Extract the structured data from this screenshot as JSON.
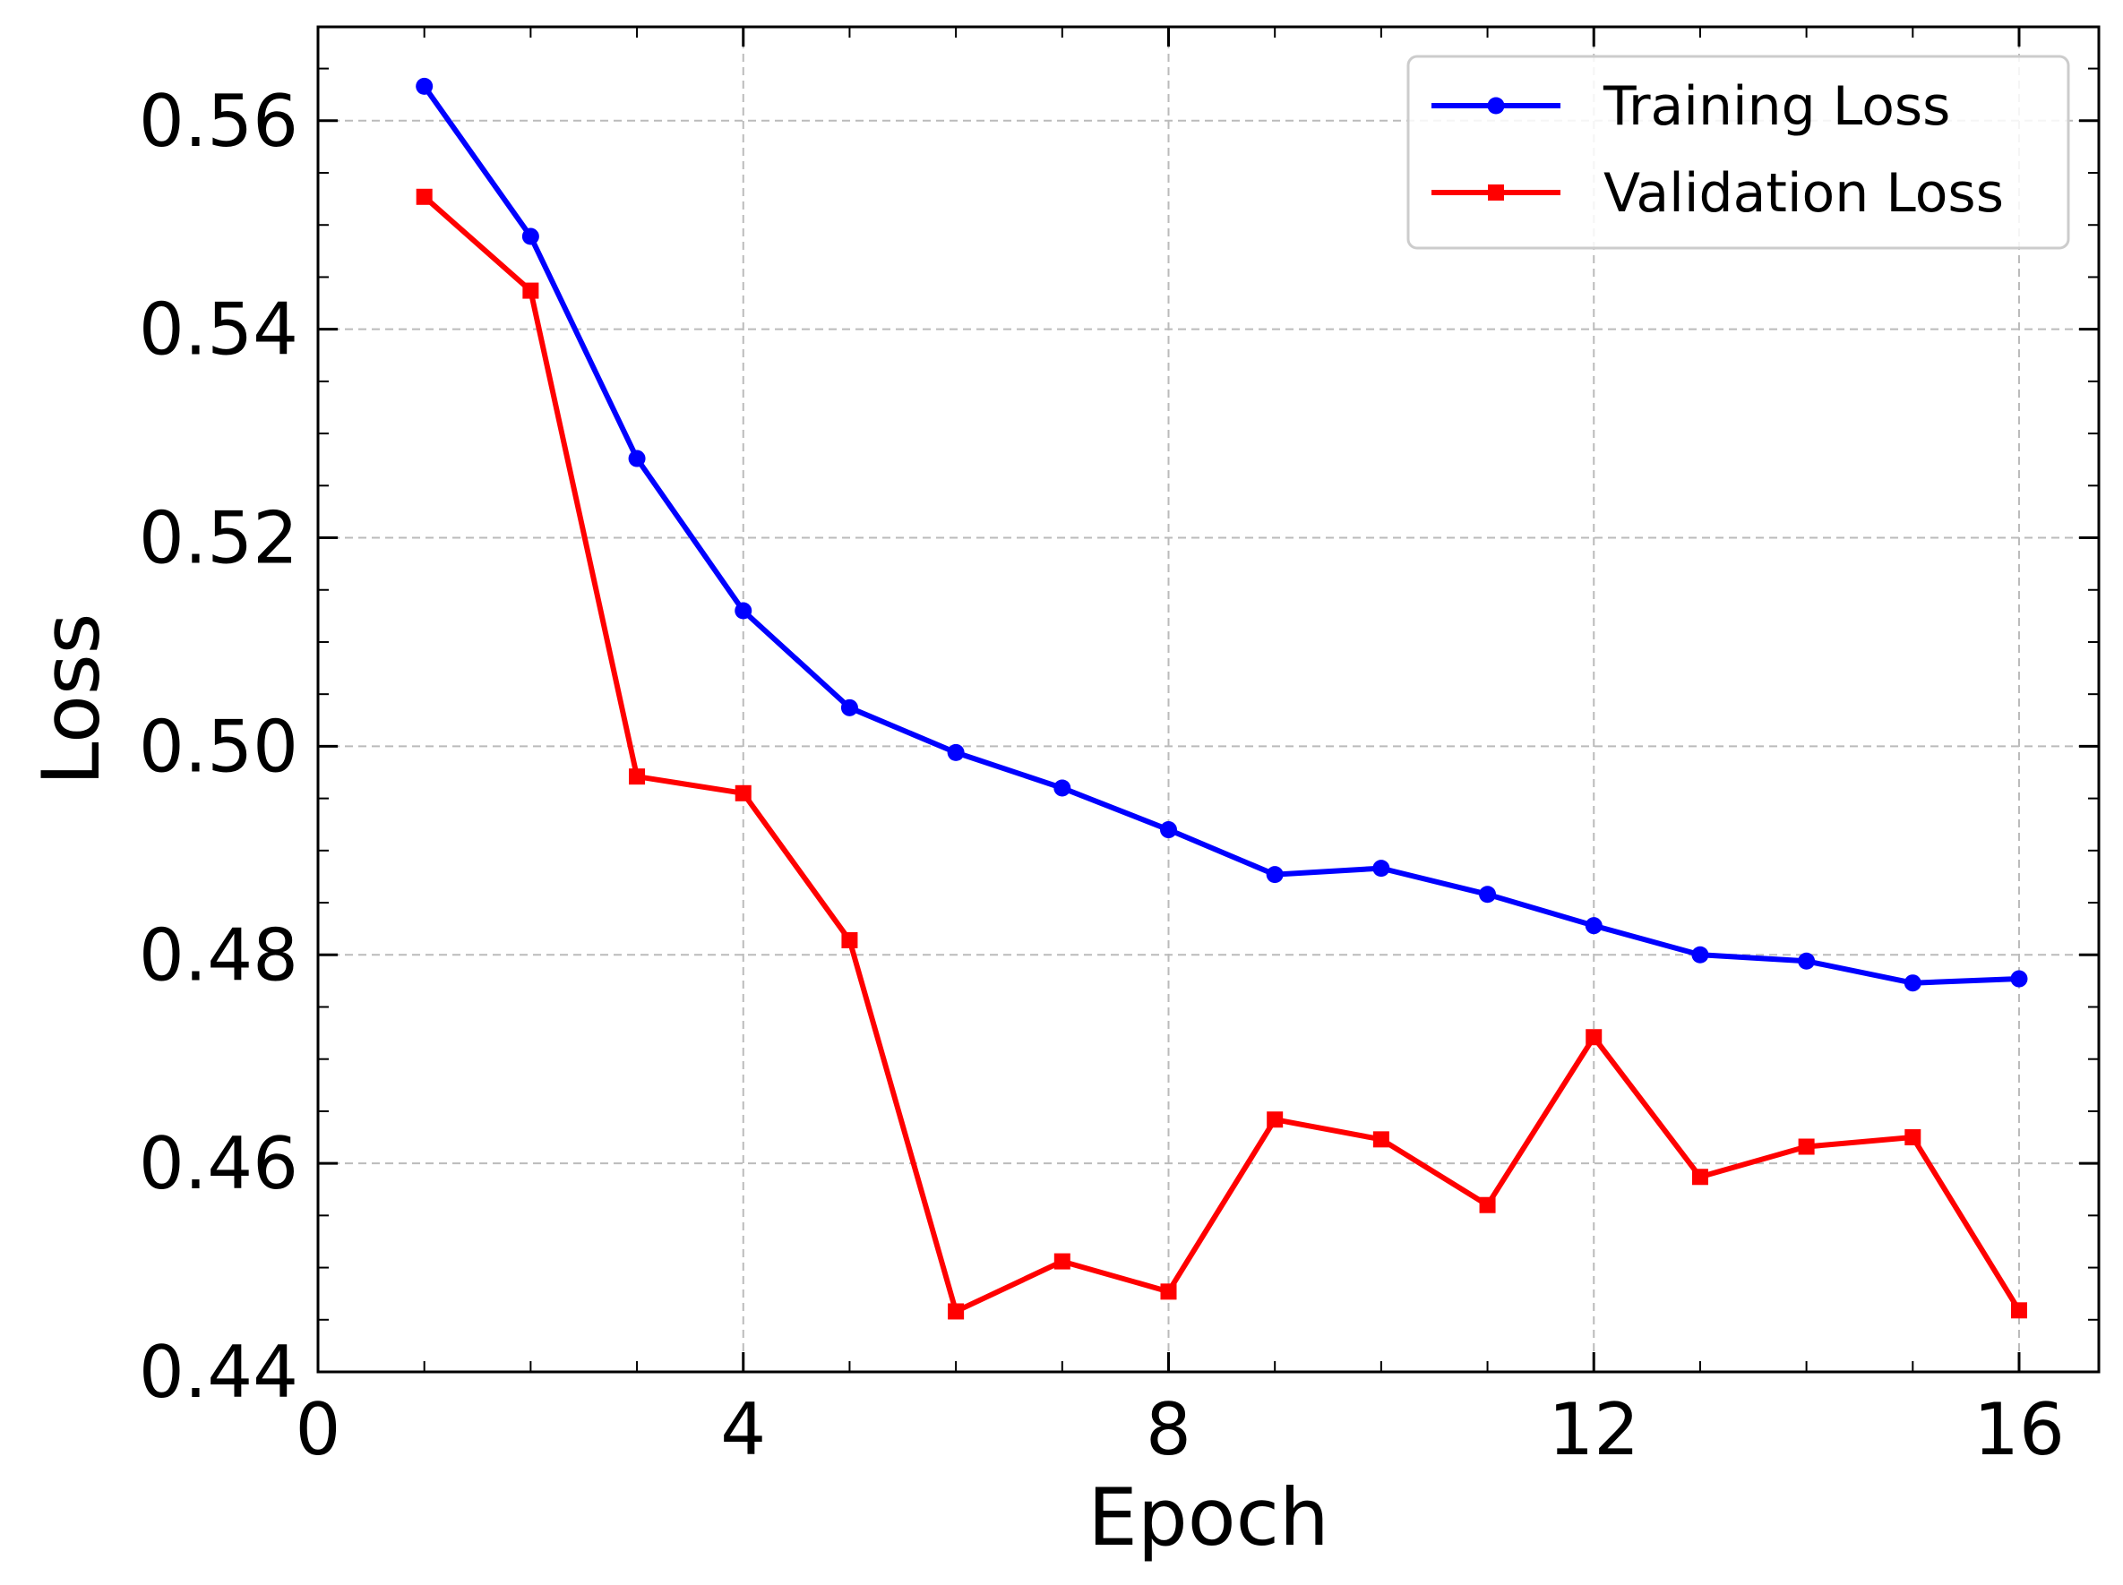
{
  "chart_data": {
    "type": "line",
    "title": "",
    "xlabel": "Epoch",
    "ylabel": "Loss",
    "xlim": [
      0,
      16.75
    ],
    "ylim": [
      0.44,
      0.569
    ],
    "xticks": [
      0,
      4,
      8,
      12,
      16
    ],
    "xtick_labels": [
      "0",
      "4",
      "8",
      "12",
      "16"
    ],
    "yticks": [
      0.44,
      0.46,
      0.48,
      0.5,
      0.52,
      0.54,
      0.56
    ],
    "ytick_labels": [
      "0.44",
      "0.46",
      "0.48",
      "0.50",
      "0.52",
      "0.54",
      "0.56"
    ],
    "grid": true,
    "legend_position": "top-right",
    "x": [
      1,
      2,
      3,
      4,
      5,
      6,
      7,
      8,
      9,
      10,
      11,
      12,
      13,
      14,
      15,
      16
    ],
    "series": [
      {
        "name": "Training Loss",
        "color": "#0000ff",
        "marker": "circle",
        "values": [
          0.5633,
          0.5489,
          0.5276,
          0.513,
          0.5037,
          0.4994,
          0.496,
          0.492,
          0.4877,
          0.4883,
          0.4858,
          0.4828,
          0.48,
          0.4794,
          0.4773,
          0.4777
        ]
      },
      {
        "name": "Validation Loss",
        "color": "#ff0000",
        "marker": "square",
        "values": [
          0.5527,
          0.5437,
          0.4971,
          0.4955,
          0.4814,
          0.4458,
          0.4506,
          0.4477,
          0.4642,
          0.4623,
          0.456,
          0.4721,
          0.4587,
          0.4616,
          0.4625,
          0.4459
        ]
      }
    ]
  }
}
